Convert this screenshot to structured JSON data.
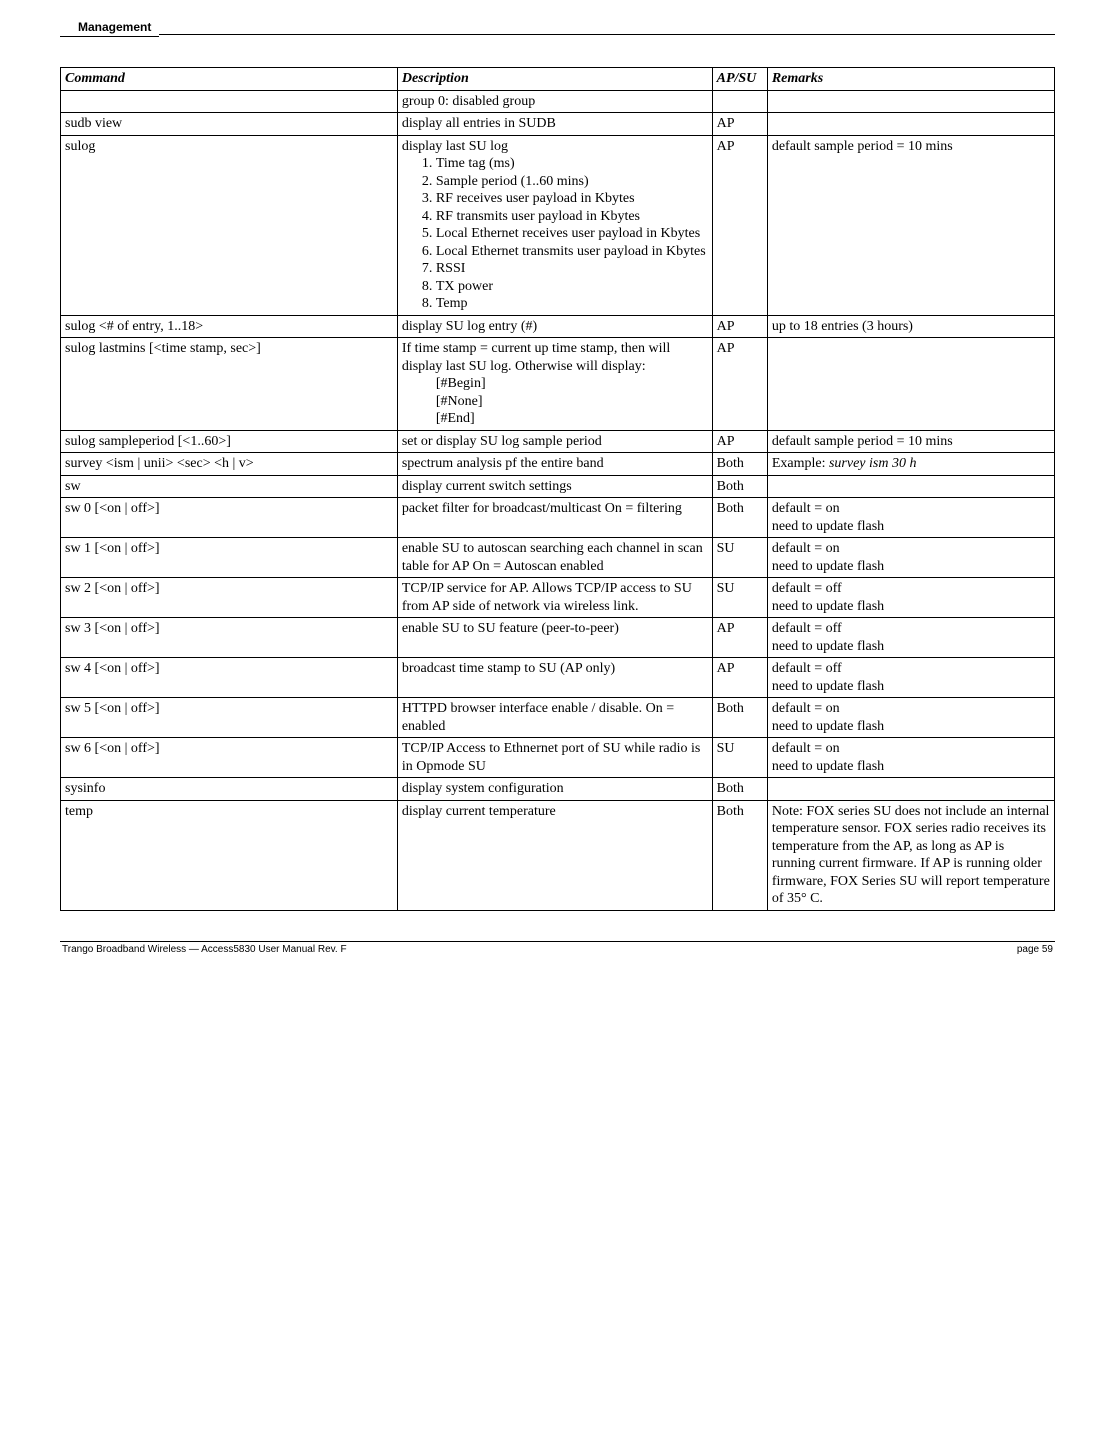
{
  "header": {
    "section_label": "Management"
  },
  "columns": {
    "c1": "Command",
    "c2": "Description",
    "c3": "AP/SU",
    "c4": "Remarks"
  },
  "rows": {
    "r0": {
      "cmd": "",
      "desc": "group 0: disabled group",
      "apsu": "",
      "rem": ""
    },
    "r1": {
      "cmd": "sudb view",
      "desc": "display all entries in SUDB",
      "apsu": "AP",
      "rem": ""
    },
    "r2": {
      "cmd": "sulog",
      "desc_lead": "display last SU log",
      "items": {
        "i1": "Time tag (ms)",
        "i2": "Sample period (1..60 mins)",
        "i3": "RF receives user payload in Kbytes",
        "i4": "RF transmits user payload in Kbytes",
        "i5": "Local Ethernet receives user payload in Kbytes",
        "i6": "Local Ethernet transmits user payload in Kbytes",
        "i7": "RSSI",
        "i8": "TX power",
        "i9": "Temp"
      },
      "apsu": "AP",
      "rem": "default sample period = 10 mins"
    },
    "r3": {
      "cmd": "sulog <# of entry, 1..18>",
      "desc": "display SU log entry (#)",
      "apsu": "AP",
      "rem": "up to 18 entries (3 hours)"
    },
    "r4": {
      "cmd": "sulog lastmins [<time stamp, sec>]",
      "desc_l1": "If  time stamp = current up time stamp, then will display last SU log. Otherwise will display:",
      "indent1": "[#Begin]",
      "indent2": "[#None]",
      "indent3": "[#End]",
      "apsu": "AP",
      "rem": ""
    },
    "r5": {
      "cmd": "sulog sampleperiod [<1..60>]",
      "desc": "set or display SU log sample period",
      "apsu": "AP",
      "rem": "default sample period = 10 mins"
    },
    "r6": {
      "cmd": "survey <ism | unii> <sec> <h | v>",
      "desc": "spectrum analysis pf the entire band",
      "apsu": "Both",
      "rem_pre": "Example:  ",
      "rem_ital": "survey ism 30 h"
    },
    "r7": {
      "cmd": "sw",
      "desc": "display current switch settings",
      "apsu": "Both",
      "rem": ""
    },
    "r8": {
      "cmd": "sw 0 [<on | off>]",
      "desc": "packet filter for broadcast/multicast On = filtering",
      "apsu": "Both",
      "rem_l1": "default = on",
      "rem_l2": "need to update flash"
    },
    "r9": {
      "cmd": "sw 1 [<on | off>]",
      "desc": "enable SU to autoscan searching each channel in scan table for AP On = Autoscan enabled",
      "apsu": "SU",
      "rem_l1": "default = on",
      "rem_l2": "need to update flash"
    },
    "r10": {
      "cmd": "sw 2 [<on | off>]",
      "desc": "TCP/IP service for AP.  Allows TCP/IP access to SU from AP side of network via wireless link.",
      "apsu": "SU",
      "rem_l1": "default = off",
      "rem_l2": "need to update flash"
    },
    "r11": {
      "cmd": "sw 3 [<on | off>]",
      "desc": "enable SU to SU feature (peer-to-peer)",
      "apsu": "AP",
      "rem_l1": "default = off",
      "rem_l2": "need to update flash"
    },
    "r12": {
      "cmd": "sw 4 [<on | off>]",
      "desc": "broadcast time stamp to SU (AP only)",
      "apsu": "AP",
      "rem_l1": "default = off",
      "rem_l2": "need to update flash"
    },
    "r13": {
      "cmd": "sw 5 [<on | off>]",
      "desc": "HTTPD browser interface enable / disable.  On = enabled",
      "apsu": "Both",
      "rem_l1": "default = on",
      "rem_l2": "need to update flash"
    },
    "r14": {
      "cmd": "sw 6 [<on | off>]",
      "desc": "TCP/IP Access to Ethnernet port of SU while radio is in Opmode SU",
      "apsu": "SU",
      "rem_l1": "default = on",
      "rem_l2": "need to update flash"
    },
    "r15": {
      "cmd": "sysinfo",
      "desc": "display system configuration",
      "apsu": "Both",
      "rem": ""
    },
    "r16": {
      "cmd": "temp",
      "desc": "display current temperature",
      "apsu": "Both",
      "rem": "Note:  FOX series SU does not include an internal temperature sensor.  FOX series radio receives its temperature from the AP, as long as AP is running current firmware.  If AP is running older firmware, FOX Series SU will report temperature of 35° C."
    }
  },
  "footer": {
    "left": "Trango Broadband Wireless — Access5830 User Manual  Rev. F",
    "right": "page 59"
  }
}
